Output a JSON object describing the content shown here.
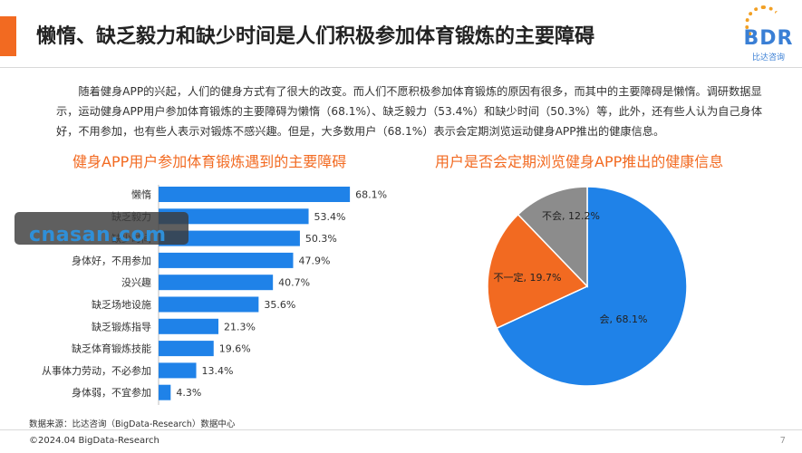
{
  "header": {
    "title": "懒惰、缺乏毅力和缺少时间是人们积极参加体育锻炼的主要障碍",
    "logo_text": "BDR",
    "logo_sub": "比达咨询"
  },
  "intro": "随着健身APP的兴起，人们的健身方式有了很大的改变。而人们不愿积极参加体育锻炼的原因有很多，而其中的主要障碍是懒惰。调研数据显示，运动健身APP用户参加体育锻炼的主要障碍为懒惰（68.1%）、缺乏毅力（53.4%）和缺少时间（50.3%）等，此外，还有些人认为自己身体好，不用参加，也有些人表示对锻炼不感兴趣。但是，大多数用户（68.1%）表示会定期浏览运动健身APP推出的健康信息。",
  "colors": {
    "accent": "#f26a21",
    "blue": "#1f82e8",
    "orange": "#f26a21",
    "gray": "#8c8c8c"
  },
  "chart_data": [
    {
      "type": "bar",
      "orientation": "horizontal",
      "title": "健身APP用户参加体育锻炼遇到的主要障碍",
      "categories": [
        "懒惰",
        "缺乏毅力",
        "缺少时间",
        "身体好，不用参加",
        "没兴趣",
        "缺乏场地设施",
        "缺乏锻炼指导",
        "缺乏体育锻炼技能",
        "从事体力劳动，不必参加",
        "身体弱，不宜参加"
      ],
      "values": [
        68.1,
        53.4,
        50.3,
        47.9,
        40.7,
        35.6,
        21.3,
        19.6,
        13.4,
        4.3
      ],
      "labels": [
        "68.1%",
        "53.4%",
        "50.3%",
        "47.9%",
        "40.7%",
        "35.6%",
        "21.3%",
        "19.6%",
        "13.4%",
        "4.3%"
      ],
      "unit": "%",
      "color": "#1f82e8",
      "xlim": [
        0,
        100
      ]
    },
    {
      "type": "pie",
      "title": "用户是否会定期浏览健身APP推出的健康信息",
      "slices": [
        {
          "label": "会, 68.1%",
          "value": 68.1,
          "color": "#1f82e8"
        },
        {
          "label": "不一定, 19.7%",
          "value": 19.7,
          "color": "#f26a21"
        },
        {
          "label": "不会, 12.2%",
          "value": 12.2,
          "color": "#8c8c8c"
        }
      ]
    }
  ],
  "footer": {
    "source": "数据来源：比达咨询（BigData-Research）数据中心",
    "copyright": "©2024.04 BigData-Research",
    "page": "7"
  },
  "watermark": "cnasan.com"
}
